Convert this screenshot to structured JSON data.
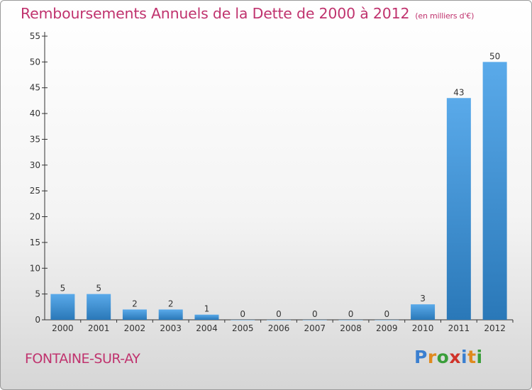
{
  "title": "Remboursements Annuels de la Dette de 2000 à 2012",
  "title_unit": "(en milliers d'€)",
  "commune": "FONTAINE-SUR-AY",
  "logo": {
    "text": "Proxiti",
    "letters": [
      {
        "char": "P",
        "color": "#3a7fd0"
      },
      {
        "char": "r",
        "color": "#e08a1e"
      },
      {
        "char": "o",
        "color": "#3a9e3a"
      },
      {
        "char": "x",
        "color": "#d0332a"
      },
      {
        "char": "i",
        "color": "#3a7fd0"
      },
      {
        "char": "t",
        "color": "#e08a1e"
      },
      {
        "char": "i",
        "color": "#3a9e3a"
      }
    ]
  },
  "colors": {
    "title": "#c0336e",
    "bar_top": "#5aaaea",
    "bar_bottom": "#2a78b8",
    "axis": "#333333"
  },
  "chart_data": {
    "type": "bar",
    "categories": [
      "2000",
      "2001",
      "2002",
      "2003",
      "2004",
      "2005",
      "2006",
      "2007",
      "2008",
      "2009",
      "2010",
      "2011",
      "2012"
    ],
    "values": [
      5,
      5,
      2,
      2,
      1,
      0,
      0,
      0,
      0,
      0,
      3,
      43,
      50
    ],
    "title": "Remboursements Annuels de la Dette de 2000 à 2012",
    "ylim": [
      0,
      55
    ],
    "yticks": [
      0,
      5,
      10,
      15,
      20,
      25,
      30,
      35,
      40,
      45,
      50,
      55
    ],
    "grid": false,
    "legend": "none"
  }
}
